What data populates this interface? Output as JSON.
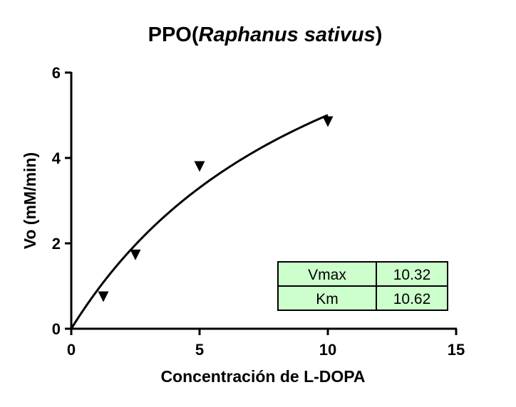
{
  "chart_data": {
    "type": "scatter",
    "title_main": "PPO(",
    "title_italic": "Raphanus sativus",
    "title_end": ")",
    "xlabel": "Concentración de L-DOPA",
    "ylabel": "Vo (mM/min)",
    "xlim": [
      0,
      15
    ],
    "ylim": [
      0,
      6
    ],
    "xticks": [
      0,
      5,
      10,
      15
    ],
    "yticks": [
      0,
      2,
      4,
      6
    ],
    "xtick_labels": [
      "0",
      "5",
      "10",
      "15"
    ],
    "ytick_labels": [
      "0",
      "2",
      "4",
      "6"
    ],
    "grid": false,
    "series": [
      {
        "points": [
          {
            "x": 1.25,
            "y": 0.75
          },
          {
            "x": 2.5,
            "y": 1.73
          },
          {
            "x": 5.0,
            "y": 3.8
          },
          {
            "x": 10.0,
            "y": 4.85
          }
        ],
        "marker": "triangle-down",
        "color": "#000000"
      }
    ],
    "fit": {
      "model": "michaelis-menten",
      "vmax": 10.32,
      "km": 10.62,
      "x_range": [
        0,
        10
      ]
    },
    "table": {
      "fill_color": "#ccffcc",
      "rows": [
        {
          "label": "Vmax",
          "value": "10.32"
        },
        {
          "label": "Km",
          "value": "10.62"
        }
      ]
    }
  }
}
